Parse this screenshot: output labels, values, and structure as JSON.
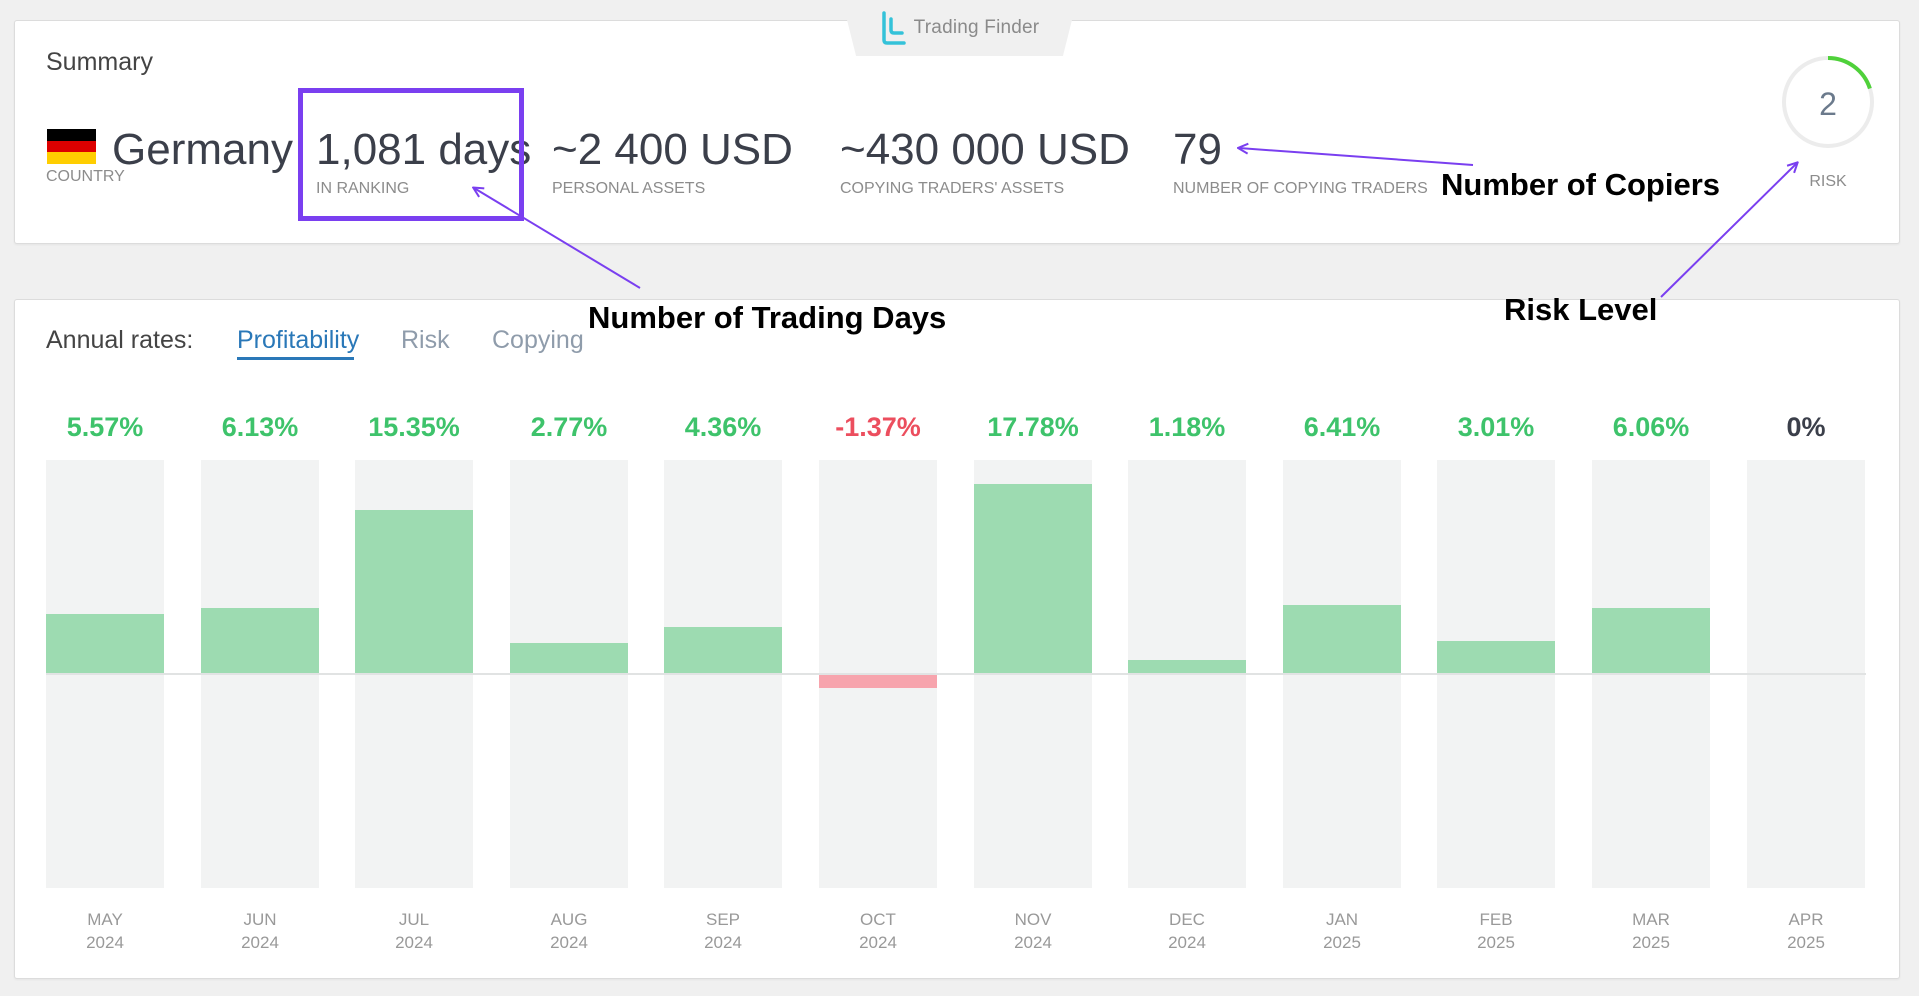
{
  "brand": {
    "name": "Trading Finder",
    "icon": "trading-finder-logo-icon",
    "color": "#34c2d9"
  },
  "summary": {
    "title": "Summary",
    "country": {
      "value": "Germany",
      "label": "COUNTRY",
      "flag_colors": [
        "#000000",
        "#dd0000",
        "#ffce00"
      ]
    },
    "ranking": {
      "value": "1,081 days",
      "label": "IN RANKING"
    },
    "personal_assets": {
      "value": "~2 400 USD",
      "label": "PERSONAL ASSETS"
    },
    "copying_assets": {
      "value": "~430 000 USD",
      "label": "COPYING TRADERS' ASSETS"
    },
    "copiers": {
      "value": "79",
      "label": "NUMBER OF COPYING TRADERS"
    },
    "risk": {
      "value": "2",
      "label": "RISK",
      "level_fraction": 0.2,
      "ring_color": "#4fd13a"
    }
  },
  "annotations": {
    "copiers": "Number of Copiers",
    "trading_days": "Number of Trading Days",
    "risk": "Risk Level",
    "color": "#7a3ff0"
  },
  "rates": {
    "header": "Annual rates:",
    "tabs": [
      {
        "label": "Profitability",
        "active": true
      },
      {
        "label": "Risk",
        "active": false
      },
      {
        "label": "Copying",
        "active": false
      }
    ]
  },
  "chart_data": {
    "type": "bar",
    "categories": [
      "MAY 2024",
      "JUN 2024",
      "JUL 2024",
      "AUG 2024",
      "SEP 2024",
      "OCT 2024",
      "NOV 2024",
      "DEC 2024",
      "JAN 2025",
      "FEB 2025",
      "MAR 2025",
      "APR 2025"
    ],
    "months": [
      "MAY",
      "JUN",
      "JUL",
      "AUG",
      "SEP",
      "OCT",
      "NOV",
      "DEC",
      "JAN",
      "FEB",
      "MAR",
      "APR"
    ],
    "years": [
      "2024",
      "2024",
      "2024",
      "2024",
      "2024",
      "2024",
      "2024",
      "2024",
      "2025",
      "2025",
      "2025",
      "2025"
    ],
    "values": [
      5.57,
      6.13,
      15.35,
      2.77,
      4.36,
      -1.37,
      17.78,
      1.18,
      6.41,
      3.01,
      6.06,
      0
    ],
    "value_labels": [
      "5.57%",
      "6.13%",
      "15.35%",
      "2.77%",
      "4.36%",
      "-1.37%",
      "17.78%",
      "1.18%",
      "6.41%",
      "3.01%",
      "6.06%",
      "0%"
    ],
    "ylim": [
      -20,
      20
    ],
    "colors": {
      "positive": "#9ddbb1",
      "negative": "#f7a4ad",
      "positive_text": "#3ec36b",
      "negative_text": "#ec4e5e",
      "zero_text": "#3b3f4a"
    }
  }
}
